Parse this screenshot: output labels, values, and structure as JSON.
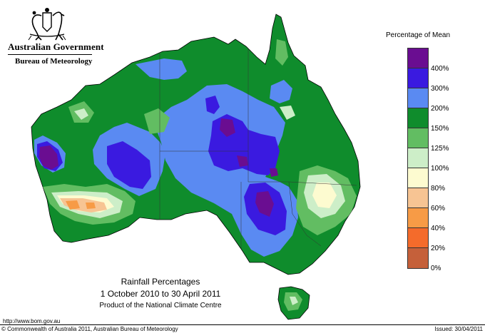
{
  "header": {
    "government": "Australian Government",
    "bureau": "Bureau of Meteorology"
  },
  "legend": {
    "title": "Percentage of Mean",
    "bins": [
      {
        "label": "400%",
        "color": "#6a0d91"
      },
      {
        "label": "300%",
        "color": "#3a1ae0"
      },
      {
        "label": "200%",
        "color": "#5a8af2"
      },
      {
        "label": "150%",
        "color": "#0f8c2c"
      },
      {
        "label": "125%",
        "color": "#62bd62"
      },
      {
        "label": "100%",
        "color": "#cdeec8"
      },
      {
        "label": "80%",
        "color": "#fdfbd0"
      },
      {
        "label": "60%",
        "color": "#f7c493"
      },
      {
        "label": "40%",
        "color": "#f79b46"
      },
      {
        "label": "20%",
        "color": "#f46b2b"
      },
      {
        "label": "0%",
        "color": "#c5603a"
      }
    ]
  },
  "map": {
    "titles": {
      "line1": "Rainfall Percentages",
      "line2": "1 October 2010 to 30 April 2011",
      "line3": "Product of the National Climate Centre"
    }
  },
  "footer": {
    "url": "http://www.bom.gov.au",
    "copyright": "© Commonwealth of Australia 2011, Australian Bureau of Meteorology",
    "issued": "Issued: 30/04/2011"
  }
}
